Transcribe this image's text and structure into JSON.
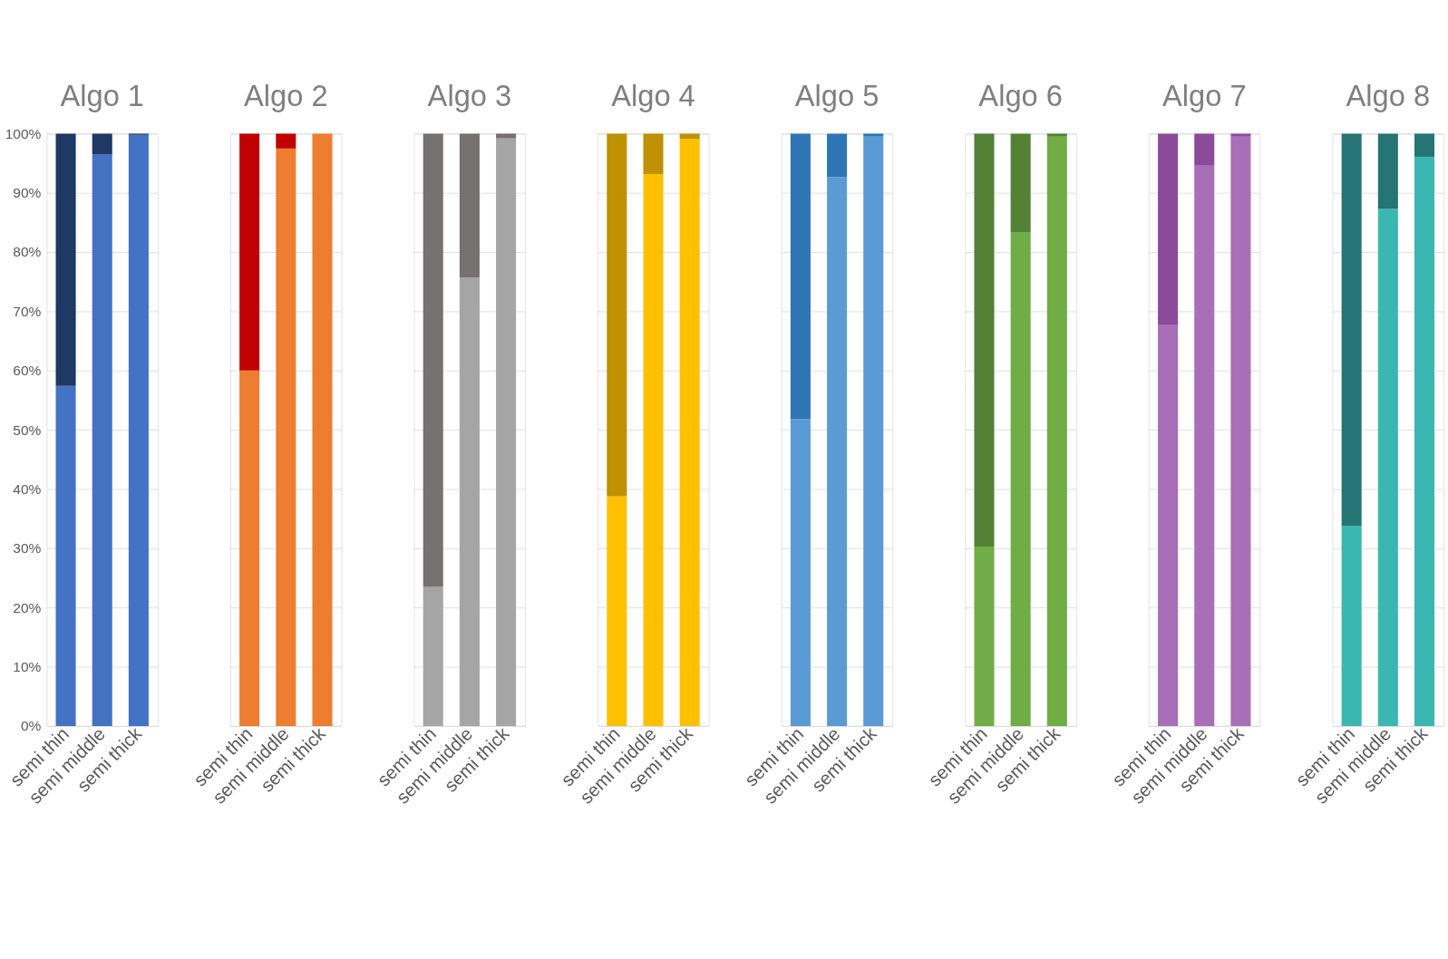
{
  "chart_data": [
    {
      "type": "bar",
      "stacked": true,
      "title": "Algo 1",
      "categories": [
        "semi thin",
        "semi middle",
        "semi thick"
      ],
      "grid": "y",
      "ylim": [
        0,
        100
      ],
      "yticks": [
        {
          "value": 0,
          "label": "0%"
        },
        {
          "value": 10,
          "label": "10%"
        },
        {
          "value": 20,
          "label": "20%"
        },
        {
          "value": 30,
          "label": "30%"
        },
        {
          "value": 40,
          "label": "40%"
        },
        {
          "value": 50,
          "label": "50%"
        },
        {
          "value": 60,
          "label": "60%"
        },
        {
          "value": 70,
          "label": "70%"
        },
        {
          "value": 80,
          "label": "80%"
        },
        {
          "value": 90,
          "label": "90%"
        },
        {
          "value": 100,
          "label": "100%"
        }
      ],
      "series": [
        {
          "color": "#4472c4",
          "values": [
            57.4,
            96.5,
            99.8
          ]
        },
        {
          "color": "#1f3864",
          "values": [
            42.6,
            3.5,
            0.2
          ]
        }
      ]
    },
    {
      "type": "bar",
      "stacked": true,
      "title": "Algo 2",
      "categories": [
        "semi thin",
        "semi middle",
        "semi thick"
      ],
      "grid": "y",
      "tick_labels": "x",
      "ylim": [
        0,
        100
      ],
      "series": [
        {
          "color": "#ed7d31",
          "values": [
            60.0,
            97.5,
            100
          ]
        },
        {
          "color": "#c00000",
          "values": [
            40.0,
            2.5,
            0
          ]
        }
      ]
    },
    {
      "type": "bar",
      "stacked": true,
      "title": "Algo 3",
      "categories": [
        "semi thin",
        "semi middle",
        "semi thick"
      ],
      "grid": "y",
      "tick_labels": "x",
      "ylim": [
        0,
        100
      ],
      "series": [
        {
          "color": "#a5a5a5",
          "values": [
            23.5,
            75.7,
            99.2
          ]
        },
        {
          "color": "#767171",
          "values": [
            76.5,
            24.3,
            0.8
          ]
        }
      ]
    },
    {
      "type": "bar",
      "stacked": true,
      "title": "Algo 4",
      "categories": [
        "semi thin",
        "semi middle",
        "semi thick"
      ],
      "grid": "y",
      "tick_labels": "x",
      "ylim": [
        0,
        100
      ],
      "series": [
        {
          "color": "#ffc000",
          "values": [
            38.8,
            93.2,
            99.1
          ]
        },
        {
          "color": "#bf9000",
          "values": [
            61.2,
            6.8,
            0.9
          ]
        }
      ]
    },
    {
      "type": "bar",
      "stacked": true,
      "title": "Algo 5",
      "categories": [
        "semi thin",
        "semi middle",
        "semi thick"
      ],
      "grid": "y",
      "tick_labels": "x",
      "ylim": [
        0,
        100
      ],
      "series": [
        {
          "color": "#5b9bd5",
          "values": [
            51.8,
            92.7,
            99.5
          ]
        },
        {
          "color": "#2e75b6",
          "values": [
            48.2,
            7.3,
            0.5
          ]
        }
      ]
    },
    {
      "type": "bar",
      "stacked": true,
      "title": "Algo 6",
      "categories": [
        "semi thin",
        "semi middle",
        "semi thick"
      ],
      "grid": "y",
      "tick_labels": "x",
      "ylim": [
        0,
        100
      ],
      "series": [
        {
          "color": "#70ad47",
          "values": [
            30.3,
            83.4,
            99.6
          ]
        },
        {
          "color": "#538135",
          "values": [
            69.7,
            16.6,
            0.4
          ]
        }
      ]
    },
    {
      "type": "bar",
      "stacked": true,
      "title": "Algo 7",
      "categories": [
        "semi thin",
        "semi middle",
        "semi thick"
      ],
      "grid": "y",
      "tick_labels": "x",
      "ylim": [
        0,
        100
      ],
      "series": [
        {
          "color": "#a86eb8",
          "values": [
            67.8,
            94.7,
            99.6
          ]
        },
        {
          "color": "#8c4b9a",
          "values": [
            32.2,
            5.3,
            0.4
          ]
        }
      ]
    },
    {
      "type": "bar",
      "stacked": true,
      "title": "Algo 8",
      "categories": [
        "semi thin",
        "semi middle",
        "semi thick"
      ],
      "grid": "y",
      "tick_labels": "x",
      "ylim": [
        0,
        100
      ],
      "series": [
        {
          "color": "#3bb7b2",
          "values": [
            33.8,
            87.3,
            96.1
          ]
        },
        {
          "color": "#247574",
          "values": [
            66.2,
            12.7,
            3.9
          ]
        }
      ]
    }
  ]
}
